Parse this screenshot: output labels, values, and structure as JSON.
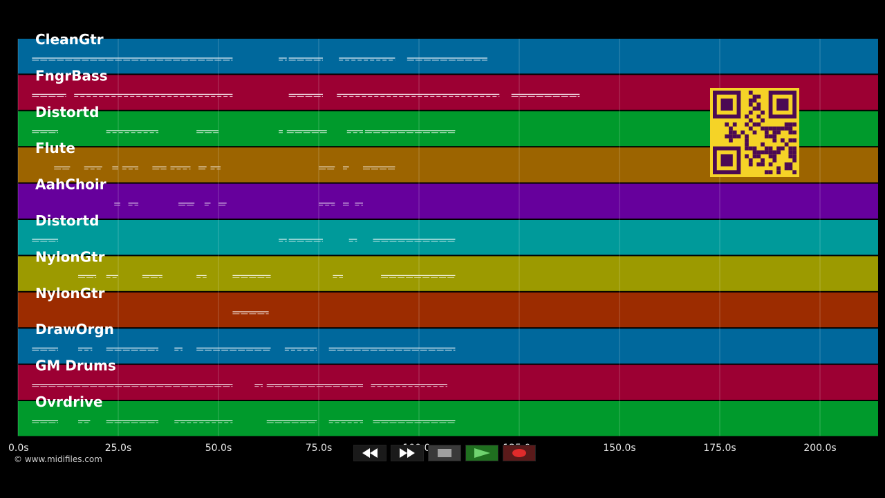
{
  "tracks": [
    {
      "name": "CleanGtr",
      "color": "#00689c",
      "notes": [
        [
          3.5,
          53.5
        ],
        [
          65,
          67
        ],
        [
          67.5,
          76
        ],
        [
          80,
          94
        ],
        [
          97,
          117
        ]
      ]
    },
    {
      "name": "FngrBass",
      "color": "#9c0033",
      "notes": [
        [
          3.5,
          12
        ],
        [
          14,
          53.5
        ],
        [
          67.5,
          76
        ],
        [
          79.5,
          120
        ],
        [
          123,
          140
        ]
      ]
    },
    {
      "name": "Distortd",
      "color": "#009a2c",
      "notes": [
        [
          3.5,
          10
        ],
        [
          22,
          35
        ],
        [
          44.5,
          50
        ],
        [
          65,
          66
        ],
        [
          67,
          77
        ],
        [
          82,
          86
        ],
        [
          86.5,
          109
        ]
      ]
    },
    {
      "name": "Flute",
      "color": "#9c6400",
      "notes": [
        [
          9,
          13
        ],
        [
          16.5,
          21
        ],
        [
          23.5,
          25
        ],
        [
          26,
          30
        ],
        [
          33.5,
          37
        ],
        [
          38,
          43
        ],
        [
          45,
          47
        ],
        [
          48,
          50.5
        ],
        [
          75,
          79
        ],
        [
          81,
          82.5
        ],
        [
          86,
          94
        ]
      ]
    },
    {
      "name": "AahChoir",
      "color": "#66009c",
      "notes": [
        [
          24,
          25.5
        ],
        [
          27.5,
          30
        ],
        [
          40,
          44
        ],
        [
          46.5,
          48
        ],
        [
          50,
          52
        ],
        [
          75,
          79
        ],
        [
          81,
          82.5
        ],
        [
          84,
          86
        ]
      ]
    },
    {
      "name": "Distortd",
      "color": "#009a9a",
      "notes": [
        [
          3.5,
          10
        ],
        [
          65,
          67
        ],
        [
          67.5,
          76
        ],
        [
          82.5,
          84.5
        ],
        [
          88.5,
          109
        ]
      ]
    },
    {
      "name": "NylonGtr",
      "color": "#9c9a00",
      "notes": [
        [
          15,
          19.5
        ],
        [
          22,
          25
        ],
        [
          31,
          36
        ],
        [
          44.5,
          47
        ],
        [
          53.5,
          63
        ],
        [
          78.5,
          81
        ],
        [
          90.5,
          109
        ]
      ]
    },
    {
      "name": "NylonGtr",
      "color": "#9c2c00",
      "notes": [
        [
          53.5,
          62.5
        ]
      ]
    },
    {
      "name": "DrawOrgn",
      "color": "#00689c",
      "notes": [
        [
          3.5,
          10
        ],
        [
          15,
          18.5
        ],
        [
          22,
          35
        ],
        [
          39,
          41
        ],
        [
          44.5,
          63
        ],
        [
          66.5,
          74.5
        ],
        [
          77.5,
          109
        ]
      ]
    },
    {
      "name": "GM Drums",
      "color": "#9c0033",
      "notes": [
        [
          3.5,
          53.5
        ],
        [
          59,
          61
        ],
        [
          62,
          86
        ],
        [
          88,
          107
        ]
      ]
    },
    {
      "name": "Ovrdrive",
      "color": "#009a2c",
      "notes": [
        [
          3.5,
          10
        ],
        [
          15,
          18
        ],
        [
          22,
          35
        ],
        [
          39,
          53.5
        ],
        [
          62,
          74.5
        ],
        [
          77.5,
          86
        ],
        [
          88.5,
          109
        ]
      ]
    }
  ],
  "timeline": {
    "ticks": [
      "0.0s",
      "25.0s",
      "50.0s",
      "75.0s",
      "100.0s",
      "125.0s",
      "150.0s",
      "175.0s",
      "200.0s"
    ]
  },
  "copyright": "© www.midifiles.com",
  "transport": {
    "rewind": "rewind-icon",
    "fast_forward": "fast-forward-icon",
    "stop": "stop-icon",
    "play": "play-icon",
    "record": "record-icon"
  },
  "qr_code": {
    "color": "#f5d327",
    "dark": "#4b0a54"
  }
}
